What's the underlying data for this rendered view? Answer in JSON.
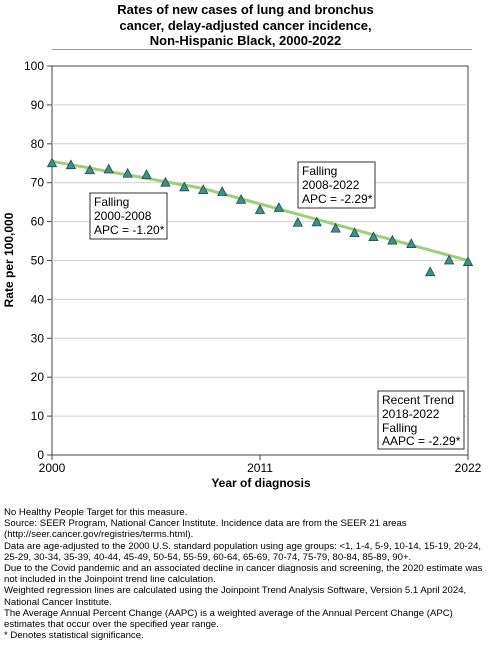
{
  "title_lines": [
    "Rates of new cases of lung and bronchus",
    "cancer, delay-adjusted cancer incidence,",
    "Non-Hispanic Black,  2000-2022"
  ],
  "chart_data": {
    "type": "scatter",
    "title": "Rates of new cases of lung and bronchus cancer, delay-adjusted cancer incidence, Non-Hispanic Black, 2000-2022",
    "xlabel": "Year of diagnosis",
    "ylabel": "Rate per 100,000",
    "xlim": [
      2000,
      2022
    ],
    "ylim": [
      0,
      100
    ],
    "x_ticks": [
      2000,
      2011,
      2022
    ],
    "y_ticks": [
      0,
      10,
      20,
      30,
      40,
      50,
      60,
      70,
      80,
      90,
      100
    ],
    "grid": "horizontal",
    "series": [
      {
        "type": "scatter",
        "marker": "triangle",
        "color": "#3f8f8a",
        "x": [
          2000,
          2001,
          2002,
          2003,
          2004,
          2005,
          2006,
          2007,
          2008,
          2009,
          2010,
          2011,
          2012,
          2013,
          2014,
          2015,
          2016,
          2017,
          2018,
          2019,
          2020,
          2021,
          2022
        ],
        "y": [
          75.0,
          74.5,
          73.2,
          73.4,
          72.3,
          72.0,
          70.0,
          68.8,
          68.1,
          67.6,
          65.6,
          63.0,
          63.5,
          59.7,
          59.8,
          58.2,
          57.0,
          56.0,
          55.1,
          54.2,
          47.0,
          50.0,
          49.6
        ]
      },
      {
        "type": "line",
        "color": "#9ad07a",
        "x": [
          2000,
          2008,
          2022
        ],
        "y": [
          75.5,
          68.5,
          50.0
        ]
      }
    ],
    "annotations": [
      {
        "lines": [
          "Falling",
          "2000-2008",
          "APC = -1.20*"
        ]
      },
      {
        "lines": [
          "Falling",
          "2008-2022",
          "APC = -2.29*"
        ]
      },
      {
        "lines": [
          "Recent Trend",
          "2018-2022",
          "Falling",
          "AAPC = -2.29*"
        ]
      }
    ]
  },
  "footnotes": [
    "No Healthy People Target for this measure.",
    "Source: SEER Program, National Cancer Institute. Incidence data are from the SEER 21 areas (http://seer.cancer.gov/registries/terms.html).",
    "Data are age-adjusted to the 2000 U.S. standard population using age groups: <1, 1-4, 5-9, 10-14, 15-19, 20-24, 25-29, 30-34, 35-39, 40-44, 45-49, 50-54, 55-59, 60-64, 65-69, 70-74, 75-79, 80-84, 85-89, 90+.",
    "Due to the Covid pandemic and an associated decline in cancer diagnosis and screening, the 2020 estimate was not included in the Joinpoint trend line calculation.",
    "Weighted regression lines are calculated using the Joinpoint Trend Analysis Software, Version 5.1 April 2024, National Cancer Institute.",
    "The Average Annual Percent Change (AAPC) is a weighted average of the Annual Percent Change (APC) estimates that occur over the specified year range.",
    "* Denotes statistical significance."
  ]
}
